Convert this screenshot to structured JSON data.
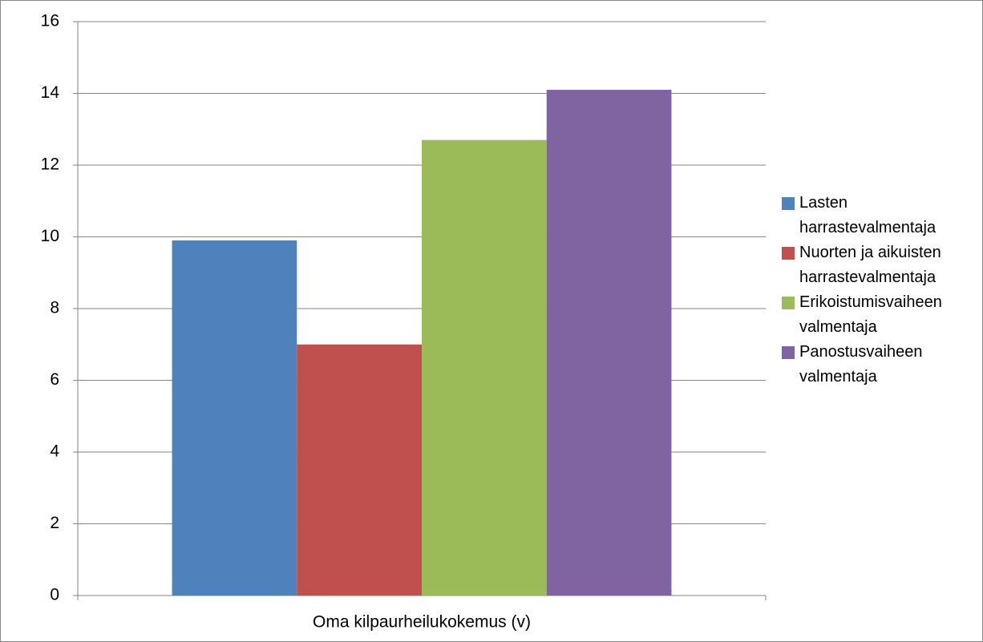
{
  "chart_data": {
    "type": "bar",
    "categories": [
      "Oma kilpaurheilukokemus (v)"
    ],
    "series": [
      {
        "name": "Lasten harrastevalmentaja",
        "color": "#4f81bd",
        "values": [
          9.9
        ]
      },
      {
        "name": "Nuorten ja aikuisten harrastevalmentaja",
        "color": "#c0504d",
        "values": [
          7.0
        ]
      },
      {
        "name": "Erikoistumisvaiheen valmentaja",
        "color": "#9bbb59",
        "values": [
          12.7
        ]
      },
      {
        "name": "Panostusvaiheen valmentaja",
        "color": "#8064a2",
        "values": [
          14.1
        ]
      }
    ],
    "ylim": [
      0,
      16
    ],
    "yticks": [
      0,
      2,
      4,
      6,
      8,
      10,
      12,
      14,
      16
    ],
    "grid": true,
    "legend": "right"
  }
}
